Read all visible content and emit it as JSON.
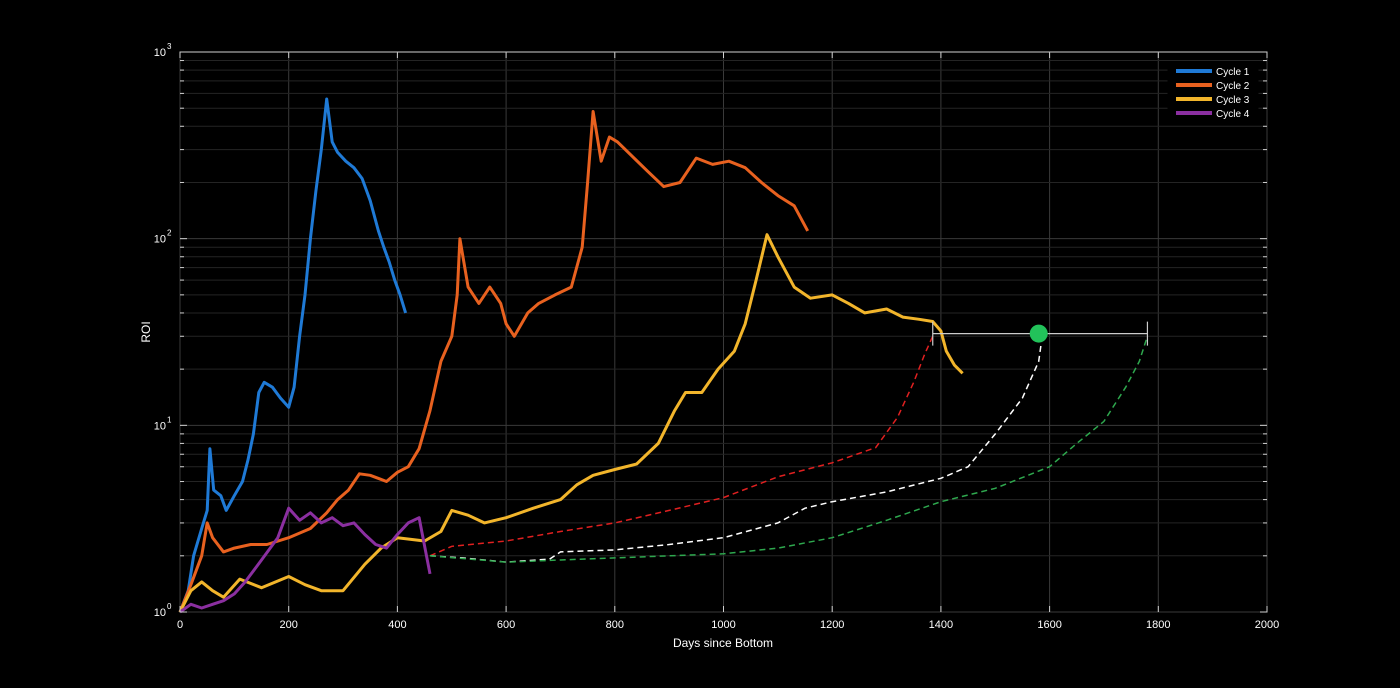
{
  "chart_data": {
    "type": "line",
    "xlabel": "Days since Bottom",
    "ylabel": "ROI",
    "xlim": [
      0,
      2000
    ],
    "ylim": [
      1,
      1000
    ],
    "yscale": "log",
    "grid": true,
    "legend_position": "top-right",
    "x_ticks": [
      "0",
      "200",
      "400",
      "600",
      "800",
      "1000",
      "1200",
      "1400",
      "1600",
      "1800",
      "2000"
    ],
    "y_ticks": [
      {
        "base": "10",
        "exp": "0"
      },
      {
        "base": "10",
        "exp": "1"
      },
      {
        "base": "10",
        "exp": "2"
      },
      {
        "base": "10",
        "exp": "3"
      }
    ],
    "series": [
      {
        "name": "Cycle 1",
        "color": "#1f7ad6",
        "points": [
          [
            0,
            1
          ],
          [
            15,
            1.3
          ],
          [
            25,
            2
          ],
          [
            40,
            2.8
          ],
          [
            50,
            3.5
          ],
          [
            55,
            7.5
          ],
          [
            62,
            4.5
          ],
          [
            75,
            4.2
          ],
          [
            85,
            3.5
          ],
          [
            100,
            4.2
          ],
          [
            115,
            5
          ],
          [
            125,
            6.5
          ],
          [
            135,
            9
          ],
          [
            145,
            15
          ],
          [
            155,
            17
          ],
          [
            170,
            16
          ],
          [
            185,
            14
          ],
          [
            200,
            12.5
          ],
          [
            210,
            16
          ],
          [
            220,
            30
          ],
          [
            230,
            50
          ],
          [
            240,
            100
          ],
          [
            250,
            180
          ],
          [
            260,
            300
          ],
          [
            270,
            560
          ],
          [
            280,
            330
          ],
          [
            290,
            290
          ],
          [
            305,
            260
          ],
          [
            320,
            240
          ],
          [
            335,
            210
          ],
          [
            350,
            160
          ],
          [
            365,
            110
          ],
          [
            375,
            90
          ],
          [
            385,
            75
          ],
          [
            395,
            60
          ],
          [
            405,
            50
          ],
          [
            415,
            40
          ]
        ]
      },
      {
        "name": "Cycle 2",
        "color": "#e8611f",
        "points": [
          [
            0,
            1
          ],
          [
            20,
            1.4
          ],
          [
            40,
            2
          ],
          [
            50,
            3
          ],
          [
            60,
            2.5
          ],
          [
            80,
            2.1
          ],
          [
            100,
            2.2
          ],
          [
            130,
            2.3
          ],
          [
            160,
            2.3
          ],
          [
            200,
            2.5
          ],
          [
            240,
            2.8
          ],
          [
            270,
            3.4
          ],
          [
            290,
            4
          ],
          [
            310,
            4.5
          ],
          [
            330,
            5.5
          ],
          [
            350,
            5.4
          ],
          [
            380,
            5
          ],
          [
            400,
            5.6
          ],
          [
            420,
            6
          ],
          [
            440,
            7.5
          ],
          [
            460,
            12
          ],
          [
            480,
            22
          ],
          [
            500,
            30
          ],
          [
            510,
            50
          ],
          [
            515,
            100
          ],
          [
            530,
            55
          ],
          [
            550,
            45
          ],
          [
            570,
            55
          ],
          [
            590,
            45
          ],
          [
            600,
            35
          ],
          [
            615,
            30
          ],
          [
            640,
            40
          ],
          [
            660,
            45
          ],
          [
            690,
            50
          ],
          [
            720,
            55
          ],
          [
            740,
            90
          ],
          [
            750,
            200
          ],
          [
            760,
            480
          ],
          [
            775,
            260
          ],
          [
            790,
            350
          ],
          [
            805,
            330
          ],
          [
            830,
            280
          ],
          [
            860,
            230
          ],
          [
            890,
            190
          ],
          [
            920,
            200
          ],
          [
            950,
            270
          ],
          [
            980,
            250
          ],
          [
            1010,
            260
          ],
          [
            1040,
            240
          ],
          [
            1070,
            200
          ],
          [
            1100,
            170
          ],
          [
            1130,
            150
          ],
          [
            1155,
            110
          ]
        ]
      },
      {
        "name": "Cycle 3",
        "color": "#f2b52b",
        "points": [
          [
            0,
            1
          ],
          [
            20,
            1.3
          ],
          [
            40,
            1.45
          ],
          [
            60,
            1.3
          ],
          [
            80,
            1.2
          ],
          [
            110,
            1.5
          ],
          [
            150,
            1.35
          ],
          [
            200,
            1.55
          ],
          [
            230,
            1.4
          ],
          [
            260,
            1.3
          ],
          [
            300,
            1.3
          ],
          [
            340,
            1.8
          ],
          [
            370,
            2.2
          ],
          [
            400,
            2.5
          ],
          [
            450,
            2.4
          ],
          [
            480,
            2.7
          ],
          [
            500,
            3.5
          ],
          [
            530,
            3.3
          ],
          [
            560,
            3
          ],
          [
            600,
            3.2
          ],
          [
            650,
            3.6
          ],
          [
            700,
            4
          ],
          [
            730,
            4.8
          ],
          [
            760,
            5.4
          ],
          [
            800,
            5.8
          ],
          [
            840,
            6.2
          ],
          [
            880,
            8
          ],
          [
            910,
            12
          ],
          [
            930,
            15
          ],
          [
            960,
            15
          ],
          [
            990,
            20
          ],
          [
            1020,
            25
          ],
          [
            1040,
            35
          ],
          [
            1060,
            60
          ],
          [
            1080,
            105
          ],
          [
            1100,
            80
          ],
          [
            1130,
            55
          ],
          [
            1160,
            48
          ],
          [
            1200,
            50
          ],
          [
            1230,
            45
          ],
          [
            1260,
            40
          ],
          [
            1300,
            42
          ],
          [
            1330,
            38
          ],
          [
            1360,
            37
          ],
          [
            1385,
            36
          ],
          [
            1400,
            32
          ],
          [
            1410,
            25
          ],
          [
            1425,
            21
          ],
          [
            1440,
            19
          ]
        ]
      },
      {
        "name": "Cycle 4",
        "color": "#8b2fa0",
        "points": [
          [
            0,
            1
          ],
          [
            20,
            1.1
          ],
          [
            40,
            1.05
          ],
          [
            60,
            1.1
          ],
          [
            80,
            1.15
          ],
          [
            100,
            1.25
          ],
          [
            120,
            1.45
          ],
          [
            150,
            1.9
          ],
          [
            180,
            2.5
          ],
          [
            200,
            3.6
          ],
          [
            220,
            3.1
          ],
          [
            240,
            3.4
          ],
          [
            260,
            3
          ],
          [
            280,
            3.2
          ],
          [
            300,
            2.9
          ],
          [
            320,
            3
          ],
          [
            340,
            2.6
          ],
          [
            360,
            2.3
          ],
          [
            380,
            2.2
          ],
          [
            400,
            2.6
          ],
          [
            420,
            3
          ],
          [
            440,
            3.2
          ],
          [
            455,
            1.9
          ],
          [
            460,
            1.6
          ]
        ]
      }
    ],
    "projections": [
      {
        "color": "#e02020",
        "dashed": true,
        "points": [
          [
            460,
            2
          ],
          [
            500,
            2.25
          ],
          [
            600,
            2.4
          ],
          [
            700,
            2.7
          ],
          [
            800,
            3
          ],
          [
            900,
            3.5
          ],
          [
            1000,
            4.1
          ],
          [
            1100,
            5.3
          ],
          [
            1200,
            6.3
          ],
          [
            1280,
            7.6
          ],
          [
            1320,
            11
          ],
          [
            1350,
            17
          ],
          [
            1370,
            24
          ],
          [
            1385,
            30
          ]
        ]
      },
      {
        "color": "#ffffff",
        "dashed": true,
        "points": [
          [
            460,
            2
          ],
          [
            520,
            1.95
          ],
          [
            600,
            1.85
          ],
          [
            680,
            1.92
          ],
          [
            700,
            2.1
          ],
          [
            800,
            2.15
          ],
          [
            900,
            2.3
          ],
          [
            1000,
            2.5
          ],
          [
            1100,
            3
          ],
          [
            1150,
            3.6
          ],
          [
            1200,
            3.9
          ],
          [
            1300,
            4.4
          ],
          [
            1400,
            5.2
          ],
          [
            1450,
            6
          ],
          [
            1500,
            9
          ],
          [
            1550,
            14
          ],
          [
            1580,
            22
          ],
          [
            1585,
            28
          ]
        ]
      },
      {
        "color": "#2ea84e",
        "dashed": true,
        "points": [
          [
            460,
            2
          ],
          [
            600,
            1.85
          ],
          [
            700,
            1.9
          ],
          [
            800,
            1.95
          ],
          [
            900,
            2
          ],
          [
            1000,
            2.05
          ],
          [
            1100,
            2.2
          ],
          [
            1200,
            2.5
          ],
          [
            1300,
            3.1
          ],
          [
            1400,
            3.9
          ],
          [
            1500,
            4.6
          ],
          [
            1600,
            6
          ],
          [
            1650,
            8
          ],
          [
            1700,
            10.5
          ],
          [
            1740,
            16
          ],
          [
            1765,
            22
          ],
          [
            1780,
            30
          ]
        ]
      }
    ],
    "bracket": {
      "x_start": 1385,
      "x_end": 1780,
      "y": 31,
      "color": "#cccccc"
    },
    "marker": {
      "x": 1580,
      "y": 31,
      "color": "#22c25a"
    }
  }
}
